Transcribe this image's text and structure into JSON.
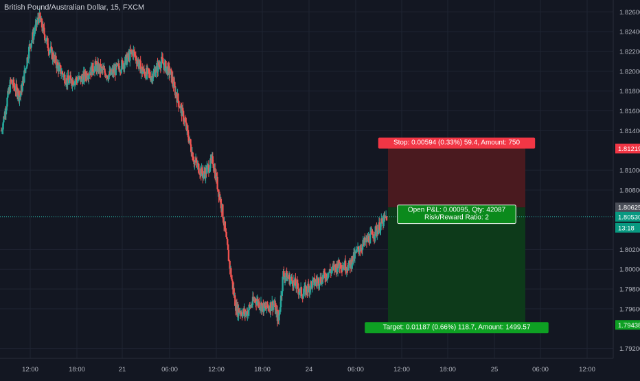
{
  "header": {
    "title": "British Pound/Australian Dollar, 15, FXCM"
  },
  "colors": {
    "background": "#131722",
    "up": "#26a69a",
    "down": "#ef5350",
    "text": "#b2b5be",
    "stop_zone": "#4a1a1f",
    "target_zone": "#0d3a1a",
    "badge_red": "#f23645",
    "badge_green": "#089981"
  },
  "chart_data": {
    "type": "candlestick",
    "title": "British Pound/Australian Dollar, 15, FXCM",
    "x_tick_labels": [
      "12:00",
      "18:00",
      "21",
      "06:00",
      "12:00",
      "18:00",
      "24",
      "06:00",
      "12:00",
      "18:00",
      "25",
      "06:00",
      "12:00"
    ],
    "y_tick_labels": [
      "1.82600",
      "1.82400",
      "1.82200",
      "1.82000",
      "1.81800",
      "1.81600",
      "1.81400",
      "1.81000",
      "1.80800",
      "1.80200",
      "1.80000",
      "1.79800",
      "1.79600",
      "1.79200"
    ],
    "ylim": [
      1.791,
      1.8272
    ],
    "price_path": [
      [
        0,
        1.814
      ],
      [
        4,
        1.819
      ],
      [
        8,
        1.8175
      ],
      [
        12,
        1.8225
      ],
      [
        16,
        1.8255
      ],
      [
        20,
        1.8225
      ],
      [
        24,
        1.8205
      ],
      [
        28,
        1.819
      ],
      [
        34,
        1.8192
      ],
      [
        40,
        1.8205
      ],
      [
        46,
        1.8196
      ],
      [
        52,
        1.8208
      ],
      [
        56,
        1.822
      ],
      [
        60,
        1.82
      ],
      [
        64,
        1.8195
      ],
      [
        68,
        1.821
      ],
      [
        72,
        1.8198
      ],
      [
        74,
        1.818
      ],
      [
        78,
        1.815
      ],
      [
        82,
        1.811
      ],
      [
        86,
        1.8095
      ],
      [
        90,
        1.811
      ],
      [
        94,
        1.806
      ],
      [
        98,
        1.799
      ],
      [
        100,
        1.796
      ],
      [
        104,
        1.7955
      ],
      [
        108,
        1.797
      ],
      [
        112,
        1.796
      ],
      [
        116,
        1.7965
      ],
      [
        118,
        1.7948
      ],
      [
        120,
        1.7995
      ],
      [
        124,
        1.7988
      ],
      [
        128,
        1.7975
      ],
      [
        132,
        1.7985
      ],
      [
        136,
        1.799
      ],
      [
        140,
        1.7998
      ],
      [
        144,
        1.8005
      ],
      [
        148,
        1.8003
      ],
      [
        152,
        1.802
      ],
      [
        156,
        1.803
      ],
      [
        160,
        1.804
      ],
      [
        164,
        1.8053
      ]
    ],
    "position": {
      "entry": 1.80625,
      "stop": 1.81219,
      "target": 1.79438,
      "current_price": 1.8053,
      "stop_label": "Stop: 0.00594 (0.33%) 59.4, Amount: 750",
      "target_label": "Target: 0.01187 (0.66%) 118.7, Amount: 1499.57",
      "pnl_label": "Open P&L: 0.00095, Qty: 42087",
      "ratio_label": "Risk/Reward Ratio: 2"
    },
    "axis_badges": {
      "stop": "1.81219",
      "entry": "1.80625",
      "current": "1.80530",
      "countdown": "13:18",
      "target": "1.79438",
      "partial": "1.80"
    }
  }
}
